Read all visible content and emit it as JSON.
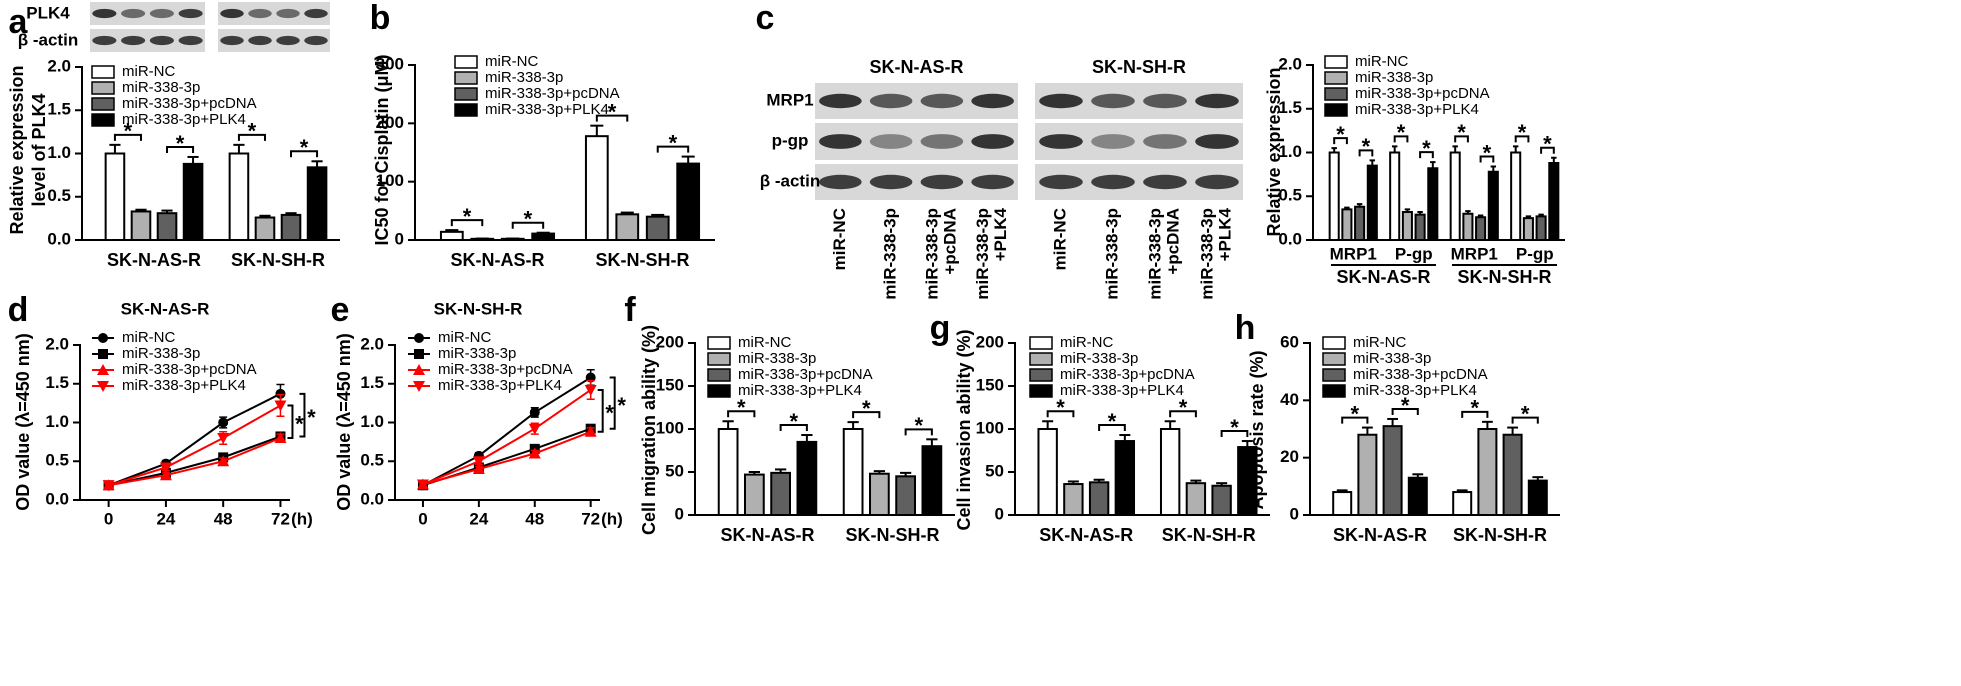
{
  "blots_a": {
    "rows": [
      "PLK4",
      "β -actin"
    ]
  },
  "blots_c": {
    "columns": [
      "SK-N-AS-R",
      "SK-N-SH-R"
    ],
    "rows": [
      "MRP1",
      "p-gp",
      "β -actin"
    ],
    "lanes": [
      [
        "miR-NC"
      ],
      [
        "miR-338-3p"
      ],
      [
        "miR-338-3p",
        "+pcDNA"
      ],
      [
        "miR-338-3p",
        "+PLK4"
      ]
    ]
  },
  "chart_data": [
    {
      "type": "bar",
      "label": "a",
      "ylabel": [
        "Relative expression",
        "level of PLK4"
      ],
      "categories": [
        "SK-N-AS-R",
        "SK-N-SH-R"
      ],
      "sig_label": "*",
      "ylim": [
        0,
        2
      ],
      "yticks": [
        {
          "value": 0,
          "label": "0.0"
        },
        0.5,
        {
          "value": 1,
          "label": "1.0"
        },
        1.5,
        {
          "value": 2,
          "label": "2.0"
        }
      ],
      "series": [
        {
          "name": "miR-NC",
          "color": "#ffffff",
          "values": [
            1.0,
            1.0
          ],
          "errors": [
            0.1,
            0.1
          ]
        },
        {
          "name": "miR-338-3p",
          "color": "#b0b0b0",
          "values": [
            0.33,
            0.26
          ],
          "errors": [
            0.02,
            0.02
          ]
        },
        {
          "name": "miR-338-3p+pcDNA",
          "color": "#606060",
          "values": [
            0.31,
            0.29
          ],
          "errors": [
            0.03,
            0.02
          ]
        },
        {
          "name": "miR-338-3p+PLK4",
          "color": "#000000",
          "values": [
            0.88,
            0.84
          ],
          "errors": [
            0.08,
            0.07
          ]
        }
      ]
    },
    {
      "type": "bar",
      "label": "b",
      "ylabel": "IC50 for Cisplatin (μM)",
      "categories": [
        "SK-N-AS-R",
        "SK-N-SH-R"
      ],
      "sig_label": "*",
      "ylim": [
        0,
        300
      ],
      "yticks": [
        0,
        100,
        200,
        300
      ],
      "series": [
        {
          "name": "miR-NC",
          "color": "#ffffff",
          "values": [
            14,
            178
          ],
          "errors": [
            3,
            18
          ]
        },
        {
          "name": "miR-338-3p",
          "color": "#b0b0b0",
          "values": [
            2,
            44
          ],
          "errors": [
            0.5,
            3
          ]
        },
        {
          "name": "miR-338-3p+pcDNA",
          "color": "#606060",
          "values": [
            2,
            40
          ],
          "errors": [
            0.5,
            3
          ]
        },
        {
          "name": "miR-338-3p+PLK4",
          "color": "#000000",
          "values": [
            11,
            131
          ],
          "errors": [
            1.5,
            12
          ]
        }
      ]
    },
    {
      "type": "bar",
      "label": "c",
      "ylabel": "Relative expression",
      "categories": [
        "MRP1",
        "P-gp",
        "MRP1",
        "P-gp"
      ],
      "groups": [
        "SK-N-AS-R",
        "SK-N-SH-R"
      ],
      "sig_label": "*",
      "ylim": [
        0,
        2
      ],
      "yticks": [
        {
          "value": 0,
          "label": "0.0"
        },
        0.5,
        {
          "value": 1,
          "label": "1.0"
        },
        1.5,
        {
          "value": 2,
          "label": "2.0"
        }
      ],
      "series": [
        {
          "name": "miR-NC",
          "color": "#ffffff",
          "values": [
            1,
            1,
            1,
            1
          ],
          "errors": [
            0.05,
            0.07,
            0.07,
            0.07
          ]
        },
        {
          "name": "miR-338-3p",
          "color": "#b0b0b0",
          "values": [
            0.35,
            0.32,
            0.3,
            0.25
          ],
          "errors": [
            0.02,
            0.03,
            0.03,
            0.02
          ]
        },
        {
          "name": "miR-338-3p+pcDNA",
          "color": "#606060",
          "values": [
            0.38,
            0.29,
            0.26,
            0.27
          ],
          "errors": [
            0.03,
            0.03,
            0.02,
            0.02
          ]
        },
        {
          "name": "miR-338-3p+PLK4",
          "color": "#000000",
          "values": [
            0.85,
            0.82,
            0.78,
            0.88
          ],
          "errors": [
            0.06,
            0.07,
            0.06,
            0.06
          ]
        }
      ]
    },
    {
      "type": "line",
      "label": "d",
      "title": "SK-N-AS-R",
      "ylabel": "OD value (λ=450 nm)",
      "xlabel": "(h)",
      "sig_label": "*",
      "x": [
        0,
        24,
        48,
        72
      ],
      "xlim": [
        -12,
        76
      ],
      "xticks": [
        0,
        24,
        48,
        72
      ],
      "ylim": [
        0,
        2
      ],
      "yticks": [
        {
          "value": 0,
          "label": "0.0"
        },
        0.5,
        {
          "value": 1,
          "label": "1.0"
        },
        1.5,
        {
          "value": 2,
          "label": "2.0"
        }
      ],
      "series": [
        {
          "name": "miR-NC",
          "color": "#000000",
          "marker": "circle",
          "values": [
            0.19,
            0.47,
            1.0,
            1.37
          ],
          "errors": [
            0.02,
            0.04,
            0.07,
            0.12
          ]
        },
        {
          "name": "miR-338-3p",
          "color": "#000000",
          "marker": "square",
          "values": [
            0.19,
            0.35,
            0.55,
            0.82
          ],
          "errors": [
            0.02,
            0.03,
            0.04,
            0.05
          ]
        },
        {
          "name": "miR-338-3p+pcDNA",
          "color": "#ff0000",
          "marker": "triangle-up",
          "values": [
            0.19,
            0.32,
            0.5,
            0.8
          ],
          "errors": [
            0.02,
            0.03,
            0.04,
            0.05
          ]
        },
        {
          "name": "miR-338-3p+PLK4",
          "color": "#ff0000",
          "marker": "triangle-down",
          "values": [
            0.19,
            0.42,
            0.8,
            1.22
          ],
          "errors": [
            0.02,
            0.04,
            0.08,
            0.14
          ]
        }
      ]
    },
    {
      "type": "line",
      "label": "e",
      "title": "SK-N-SH-R",
      "ylabel": "OD value (λ=450 nm)",
      "xlabel": "(h)",
      "sig_label": "*",
      "x": [
        0,
        24,
        48,
        72
      ],
      "xlim": [
        -12,
        76
      ],
      "xticks": [
        0,
        24,
        48,
        72
      ],
      "ylim": [
        0,
        2
      ],
      "yticks": [
        {
          "value": 0,
          "label": "0.0"
        },
        0.5,
        {
          "value": 1,
          "label": "1.0"
        },
        1.5,
        {
          "value": 2,
          "label": "2.0"
        }
      ],
      "series": [
        {
          "name": "miR-NC",
          "color": "#000000",
          "marker": "circle",
          "values": [
            0.19,
            0.57,
            1.13,
            1.58
          ],
          "errors": [
            0.02,
            0.04,
            0.06,
            0.1
          ]
        },
        {
          "name": "miR-338-3p",
          "color": "#000000",
          "marker": "square",
          "values": [
            0.19,
            0.42,
            0.66,
            0.92
          ],
          "errors": [
            0.02,
            0.03,
            0.04,
            0.05
          ]
        },
        {
          "name": "miR-338-3p+pcDNA",
          "color": "#ff0000",
          "marker": "triangle-up",
          "values": [
            0.2,
            0.4,
            0.6,
            0.88
          ],
          "errors": [
            0.02,
            0.03,
            0.04,
            0.05
          ]
        },
        {
          "name": "miR-338-3p+PLK4",
          "color": "#ff0000",
          "marker": "triangle-down",
          "values": [
            0.2,
            0.5,
            0.92,
            1.42
          ],
          "errors": [
            0.02,
            0.04,
            0.07,
            0.12
          ]
        }
      ]
    },
    {
      "type": "bar",
      "label": "f",
      "ylabel": "Cell migration ability (%)",
      "categories": [
        "SK-N-AS-R",
        "SK-N-SH-R"
      ],
      "sig_label": "*",
      "ylim": [
        0,
        200
      ],
      "yticks": [
        0,
        50,
        100,
        150,
        200
      ],
      "series": [
        {
          "name": "miR-NC",
          "color": "#ffffff",
          "values": [
            100,
            100
          ],
          "errors": [
            9,
            8
          ]
        },
        {
          "name": "miR-338-3p",
          "color": "#b0b0b0",
          "values": [
            47,
            48
          ],
          "errors": [
            3,
            3
          ]
        },
        {
          "name": "miR-338-3p+pcDNA",
          "color": "#606060",
          "values": [
            49,
            45
          ],
          "errors": [
            4,
            4
          ]
        },
        {
          "name": "miR-338-3p+PLK4",
          "color": "#000000",
          "values": [
            85,
            80
          ],
          "errors": [
            8,
            8
          ]
        }
      ]
    },
    {
      "type": "bar",
      "label": "g",
      "ylabel": "Cell invasion ability (%)",
      "categories": [
        "SK-N-AS-R",
        "SK-N-SH-R"
      ],
      "sig_label": "*",
      "ylim": [
        0,
        200
      ],
      "yticks": [
        0,
        50,
        100,
        150,
        200
      ],
      "series": [
        {
          "name": "miR-NC",
          "color": "#ffffff",
          "values": [
            100,
            100
          ],
          "errors": [
            9,
            9
          ]
        },
        {
          "name": "miR-338-3p",
          "color": "#b0b0b0",
          "values": [
            36,
            37
          ],
          "errors": [
            3,
            3
          ]
        },
        {
          "name": "miR-338-3p+pcDNA",
          "color": "#606060",
          "values": [
            38,
            34
          ],
          "errors": [
            3,
            3
          ]
        },
        {
          "name": "miR-338-3p+PLK4",
          "color": "#000000",
          "values": [
            86,
            79
          ],
          "errors": [
            7,
            7
          ]
        }
      ]
    },
    {
      "type": "bar",
      "label": "h",
      "ylabel": "Apoptosis rate (%)",
      "categories": [
        "SK-N-AS-R",
        "SK-N-SH-R"
      ],
      "sig_label": "*",
      "ylim": [
        0,
        60
      ],
      "yticks": [
        0,
        20,
        40,
        60
      ],
      "series": [
        {
          "name": "miR-NC",
          "color": "#ffffff",
          "values": [
            8,
            8
          ],
          "errors": [
            0.6,
            0.6
          ]
        },
        {
          "name": "miR-338-3p",
          "color": "#b0b0b0",
          "values": [
            28,
            30
          ],
          "errors": [
            2.5,
            2.5
          ]
        },
        {
          "name": "miR-338-3p+pcDNA",
          "color": "#606060",
          "values": [
            31,
            28
          ],
          "errors": [
            2.5,
            2.5
          ]
        },
        {
          "name": "miR-338-3p+PLK4",
          "color": "#000000",
          "values": [
            13,
            12
          ],
          "errors": [
            1.2,
            1.2
          ]
        }
      ]
    }
  ]
}
